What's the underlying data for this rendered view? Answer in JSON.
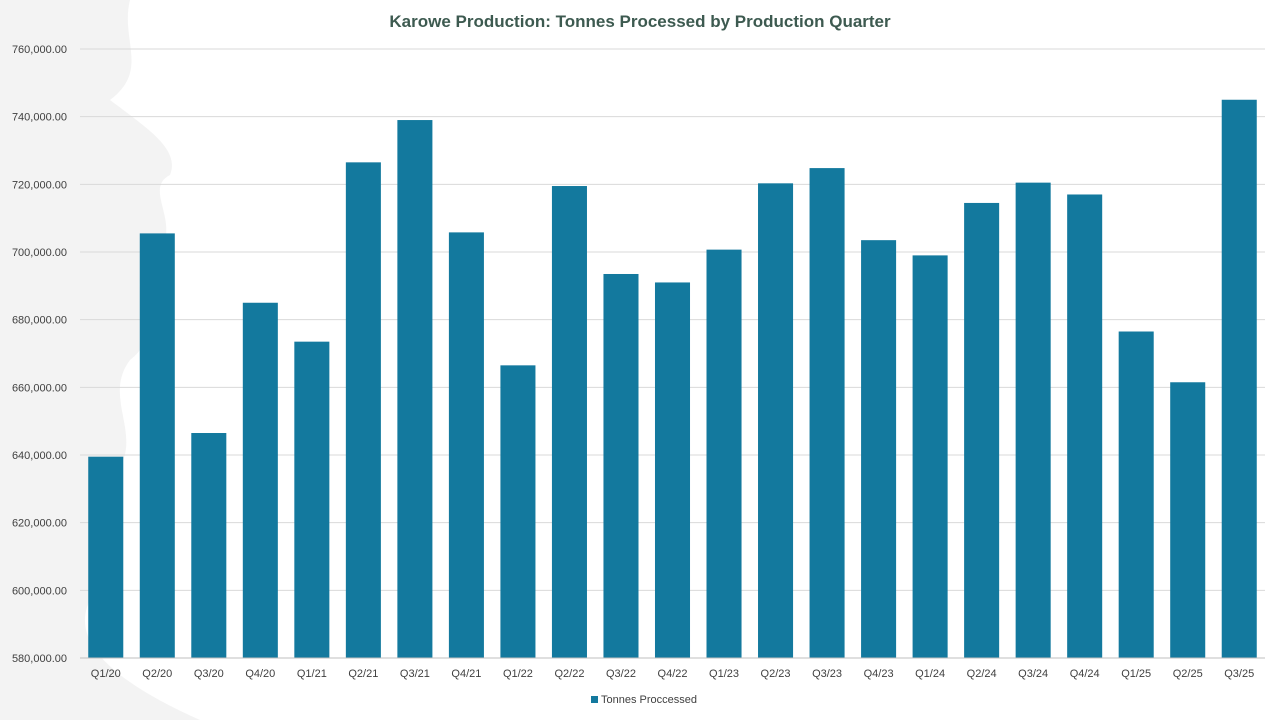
{
  "chart_data": {
    "type": "bar",
    "title": "Karowe Production: Tonnes Processed by Production Quarter",
    "xlabel": "",
    "ylabel": "",
    "ylim": [
      580000,
      760000
    ],
    "y_ticks": [
      580000,
      600000,
      620000,
      640000,
      660000,
      680000,
      700000,
      720000,
      740000,
      760000
    ],
    "y_tick_labels": [
      "580,000.00",
      "600,000.00",
      "620,000.00",
      "640,000.00",
      "660,000.00",
      "680,000.00",
      "700,000.00",
      "720,000.00",
      "740,000.00",
      "760,000.00"
    ],
    "grid": true,
    "legend_position": "bottom",
    "categories": [
      "Q1/20",
      "Q2/20",
      "Q3/20",
      "Q4/20",
      "Q1/21",
      "Q2/21",
      "Q3/21",
      "Q4/21",
      "Q1/22",
      "Q2/22",
      "Q3/22",
      "Q4/22",
      "Q1/23",
      "Q2/23",
      "Q3/23",
      "Q4/23",
      "Q1/24",
      "Q2/24",
      "Q3/24",
      "Q4/24",
      "Q1/25",
      "Q2/25",
      "Q3/25"
    ],
    "series": [
      {
        "name": "Tonnes Proccessed",
        "color": "#13799e",
        "values": [
          639500,
          705500,
          646500,
          685000,
          673500,
          726500,
          739000,
          705800,
          666500,
          719500,
          693500,
          691000,
          700700,
          720300,
          724800,
          703500,
          699000,
          714500,
          720500,
          717000,
          676500,
          661500,
          745000
        ]
      }
    ]
  },
  "colors": {
    "bar": "#13799e",
    "title": "#3d5a50",
    "gridline": "#d9d9d9",
    "tick_text": "#404040"
  }
}
